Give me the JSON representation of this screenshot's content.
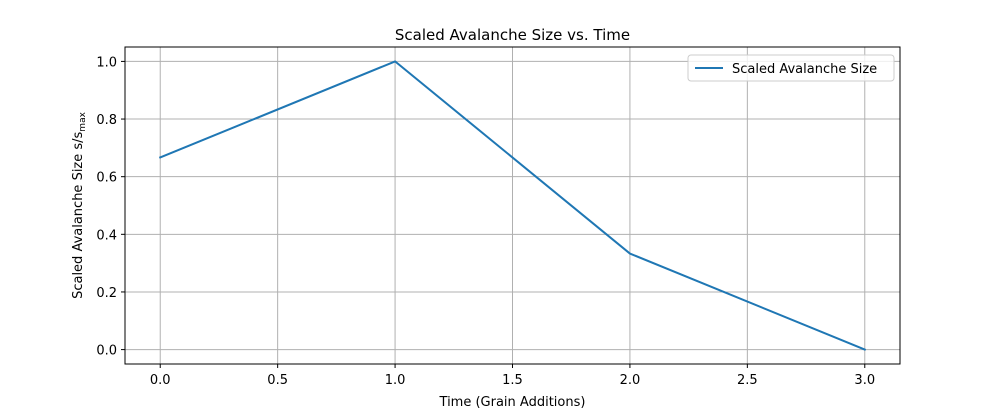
{
  "chart_data": {
    "type": "line",
    "title": "Scaled Avalanche Size vs. Time",
    "xlabel": "Time (Grain Additions)",
    "ylabel": {
      "main": "Scaled Avalanche Size s/s",
      "subscript": "max"
    },
    "x": [
      0,
      1,
      2,
      3
    ],
    "series": [
      {
        "name": "Scaled Avalanche Size",
        "values": [
          0.6667,
          1.0,
          0.3333,
          0.0
        ],
        "color": "#1f77b4"
      }
    ],
    "xlim": [
      -0.15,
      3.15
    ],
    "ylim": [
      -0.05,
      1.05
    ],
    "xticks": [
      "0.0",
      "0.5",
      "1.0",
      "1.5",
      "2.0",
      "2.5",
      "3.0"
    ],
    "yticks": [
      "0.0",
      "0.2",
      "0.4",
      "0.6",
      "0.8",
      "1.0"
    ],
    "grid": true,
    "legend_position": "top-right"
  }
}
